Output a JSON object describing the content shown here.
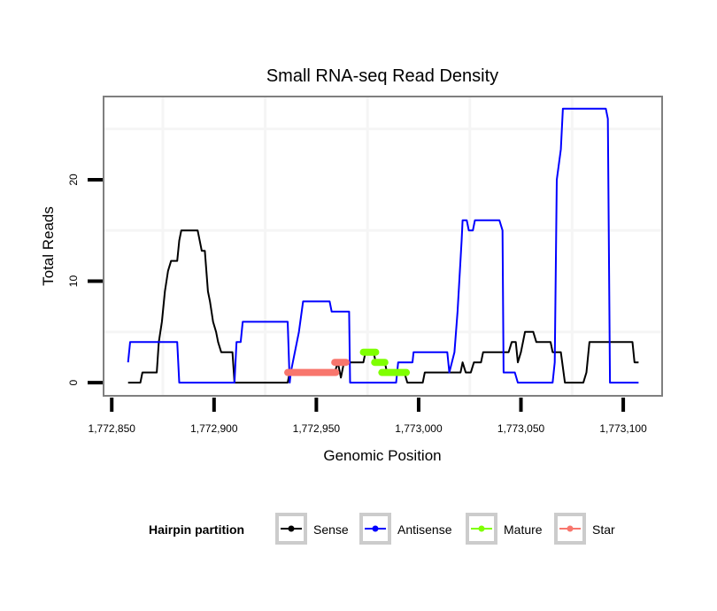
{
  "chart_data": {
    "type": "line",
    "title": "Small RNA-seq Read Density",
    "xlabel": "Genomic Position",
    "ylabel": "Total Reads",
    "xlim": [
      1772846,
      1773119
    ],
    "ylim": [
      -1.3,
      28.2
    ],
    "x_ticks": [
      1772850,
      1772900,
      1772950,
      1773000,
      1773050,
      1773100
    ],
    "x_tick_labels": [
      "1,772,850",
      "1,772,900",
      "1,772,950",
      "1,773,000",
      "1,773,050",
      "1,773,100"
    ],
    "y_ticks": [
      0,
      10,
      20
    ],
    "y_tick_labels": [
      "0",
      "10",
      "20"
    ],
    "x_minor_grid": [
      1772875,
      1772925,
      1772975,
      1773025,
      1773075
    ],
    "y_minor_grid": [
      5,
      15,
      25
    ],
    "grid": true,
    "legend": {
      "title": "Hairpin partition",
      "position": "bottom",
      "entries": [
        "Sense",
        "Antisense",
        "Mature",
        "Star"
      ]
    },
    "series": [
      {
        "name": "Sense",
        "color": "#000000",
        "x": [
          1772858,
          1772864,
          1772865,
          1772872,
          1772873,
          1772874.5,
          1772876,
          1772877.5,
          1772879,
          1772882,
          1772883,
          1772884,
          1772892,
          1772893,
          1772894,
          1772895.5,
          1772897,
          1772898,
          1772899.5,
          1772901,
          1772902,
          1772903.5,
          1772909,
          1772910,
          1772936,
          1772937,
          1772959,
          1772960.5,
          1772962,
          1772963.5,
          1772973,
          1772974,
          1772978,
          1772979,
          1772983.5,
          1772984.5,
          1772993,
          1772994.5,
          1773002,
          1773003,
          1773020.5,
          1773021.5,
          1773023,
          1773025.5,
          1773027,
          1773030.5,
          1773031.5,
          1773044,
          1773045.5,
          1773047.5,
          1773048.5,
          1773050,
          1773052,
          1773056,
          1773057.5,
          1773064.5,
          1773065.5,
          1773069.5,
          1773071.5,
          1773080.5,
          1773082,
          1773083.5,
          1773104.5,
          1773105.5,
          1773107.5
        ],
        "y": [
          0,
          0,
          1,
          1,
          4,
          6,
          9,
          11,
          12,
          12,
          14,
          15,
          15,
          14,
          13,
          13,
          9,
          8,
          6,
          5,
          4,
          3,
          3,
          0,
          0,
          1,
          1,
          2,
          0.5,
          2,
          2,
          3,
          3,
          2,
          2,
          1,
          1,
          0,
          0,
          1,
          1,
          2,
          1,
          1,
          2,
          2,
          3,
          3,
          4,
          4,
          2,
          3,
          5,
          5,
          4,
          4,
          3,
          3,
          0,
          0,
          1,
          4,
          4,
          2,
          2
        ]
      },
      {
        "name": "Antisense",
        "color": "#0000ff",
        "x": [
          1772858,
          1772859,
          1772882,
          1772883,
          1772910,
          1772911,
          1772913,
          1772914,
          1772936,
          1772937,
          1772937.5,
          1772941.5,
          1772943.5,
          1772956.5,
          1772957.5,
          1772966,
          1772966.5,
          1772989,
          1772990,
          1772997,
          1772997.5,
          1773014,
          1773015,
          1773017.5,
          1773019,
          1773021,
          1773021.5,
          1773023.5,
          1773024.5,
          1773026.5,
          1773027.5,
          1773039.5,
          1773041,
          1773041.5,
          1773047,
          1773048.5,
          1773065.5,
          1773066.5,
          1773067.5,
          1773069.5,
          1773070.5,
          1773091.5,
          1773092.5,
          1773093.5,
          1773107.5
        ],
        "y": [
          2,
          4,
          4,
          0,
          0,
          4,
          4,
          6,
          6,
          0,
          1,
          5,
          8,
          8,
          7,
          7,
          0,
          0,
          2,
          2,
          3,
          3,
          1,
          3,
          7,
          14,
          16,
          16,
          15,
          15,
          16,
          16,
          15,
          1,
          1,
          0,
          0,
          2,
          20,
          23,
          27,
          27,
          26,
          0,
          0
        ]
      },
      {
        "name": "Mature",
        "color": "#7fff00",
        "segments": [
          {
            "x": [
              1772973,
              1772979
            ],
            "y": [
              3,
              3
            ]
          },
          {
            "x": [
              1772978.5,
              1772983.5
            ],
            "y": [
              2,
              2
            ]
          },
          {
            "x": [
              1772982,
              1772994
            ],
            "y": [
              1,
              1
            ]
          }
        ]
      },
      {
        "name": "Star",
        "color": "#f8766d",
        "segments": [
          {
            "x": [
              1772936,
              1772959.5
            ],
            "y": [
              1,
              1
            ]
          },
          {
            "x": [
              1772959,
              1772964.5
            ],
            "y": [
              2,
              2
            ]
          }
        ]
      }
    ]
  }
}
